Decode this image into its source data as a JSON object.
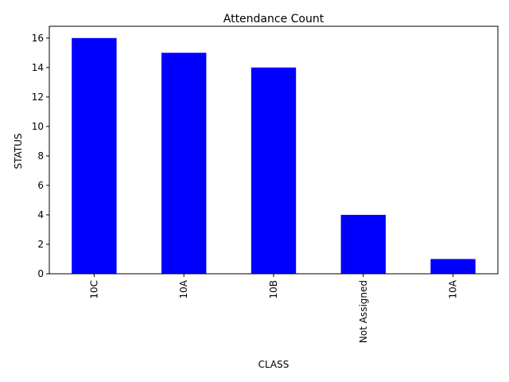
{
  "chart_data": {
    "type": "bar",
    "title": "Attendance Count",
    "xlabel": "CLASS",
    "ylabel": "STATUS",
    "categories": [
      "10C",
      "10A",
      "10B",
      "Not Assigned",
      "10A"
    ],
    "values": [
      16,
      15,
      14,
      4,
      1
    ],
    "ylim": [
      0,
      16.8
    ],
    "yticks": [
      0,
      2,
      4,
      6,
      8,
      10,
      12,
      14,
      16
    ],
    "bar_color": "#0000ff",
    "grid": false,
    "legend": "none",
    "xtick_rotation": "vertical"
  }
}
